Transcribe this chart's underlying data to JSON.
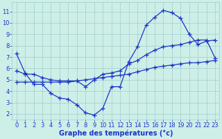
{
  "xlabel": "Graphe des températures (°c)",
  "bg_color": "#ceeee8",
  "line_color": "#1a35c8",
  "grid_color": "#9fcfca",
  "xlim": [
    -0.5,
    23.5
  ],
  "ylim": [
    1.5,
    11.8
  ],
  "xticks": [
    0,
    1,
    2,
    3,
    4,
    5,
    6,
    7,
    8,
    9,
    10,
    11,
    12,
    13,
    14,
    15,
    16,
    17,
    18,
    19,
    20,
    21,
    22,
    23
  ],
  "yticks": [
    2,
    3,
    4,
    5,
    6,
    7,
    8,
    9,
    10,
    11
  ],
  "line1_x": [
    0,
    1,
    2,
    3,
    4,
    5,
    6,
    7,
    8,
    9,
    10,
    11,
    12,
    13,
    14,
    15,
    16,
    17,
    18,
    19,
    20,
    21,
    22,
    23
  ],
  "line1_y": [
    7.3,
    5.6,
    4.6,
    4.6,
    3.8,
    3.4,
    3.3,
    2.8,
    2.1,
    1.9,
    2.5,
    4.4,
    4.4,
    6.6,
    7.9,
    9.8,
    10.5,
    11.1,
    10.9,
    10.4,
    9.0,
    8.1,
    8.4,
    8.5
  ],
  "line2_x": [
    0,
    1,
    2,
    3,
    4,
    5,
    6,
    7,
    8,
    9,
    10,
    11,
    12,
    13,
    14,
    15,
    16,
    17,
    18,
    19,
    20,
    21,
    22,
    23
  ],
  "line2_y": [
    5.8,
    5.5,
    5.5,
    5.2,
    5.0,
    4.9,
    4.9,
    4.9,
    4.4,
    5.0,
    5.5,
    5.6,
    5.8,
    6.4,
    6.7,
    7.2,
    7.6,
    7.9,
    8.0,
    8.1,
    8.3,
    8.5,
    8.5,
    6.9
  ],
  "line3_x": [
    0,
    1,
    2,
    3,
    4,
    5,
    6,
    7,
    8,
    9,
    10,
    11,
    12,
    13,
    14,
    15,
    16,
    17,
    18,
    19,
    20,
    21,
    22,
    23
  ],
  "line3_y": [
    4.8,
    4.8,
    4.8,
    4.8,
    4.8,
    4.8,
    4.8,
    4.9,
    5.0,
    5.1,
    5.2,
    5.3,
    5.4,
    5.5,
    5.7,
    5.9,
    6.1,
    6.2,
    6.3,
    6.4,
    6.5,
    6.5,
    6.6,
    6.7
  ],
  "marker": "+",
  "marker_size": 4,
  "linewidth": 0.9,
  "xlabel_fontsize": 7,
  "tick_fontsize": 6
}
